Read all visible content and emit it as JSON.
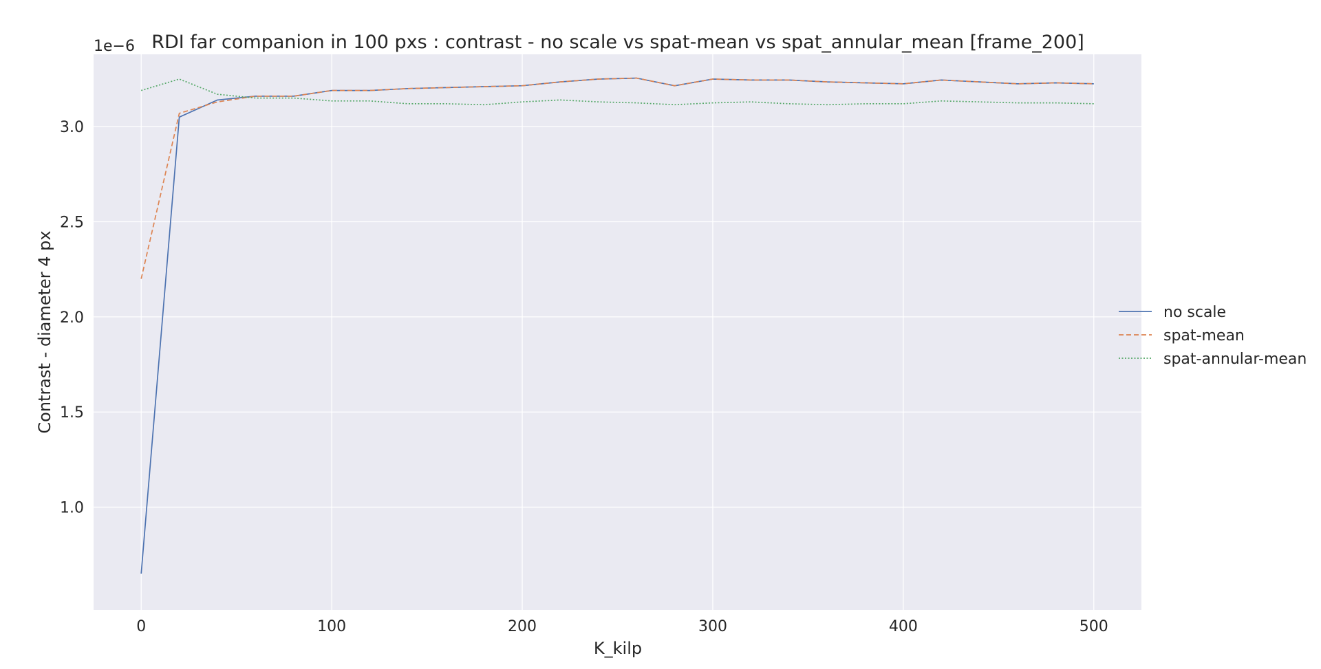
{
  "chart_data": {
    "type": "line",
    "title": "RDI far companion in 100 pxs : contrast - no scale vs spat-mean vs spat_annular_mean [frame_200]",
    "xlabel": "K_kilp",
    "ylabel": "Contrast - diameter 4 px",
    "y_offset_label": "1e−6",
    "xlim": [
      -25,
      525
    ],
    "ylim": [
      0.46,
      3.38
    ],
    "x_ticks": [
      0,
      100,
      200,
      300,
      400,
      500
    ],
    "x_tick_labels": [
      "0",
      "100",
      "200",
      "300",
      "400",
      "500"
    ],
    "y_ticks": [
      1.0,
      1.5,
      2.0,
      2.5,
      3.0
    ],
    "y_tick_labels": [
      "1.0",
      "1.5",
      "2.0",
      "2.5",
      "3.0"
    ],
    "grid": true,
    "legend_position": "right, outside plot",
    "x": [
      0,
      20,
      40,
      60,
      80,
      100,
      120,
      140,
      160,
      180,
      200,
      220,
      240,
      260,
      280,
      300,
      320,
      340,
      360,
      380,
      400,
      420,
      440,
      460,
      480,
      500
    ],
    "series": [
      {
        "name": "no scale",
        "color": "#4c72b0",
        "dash": "solid",
        "values": [
          0.65,
          3.05,
          3.14,
          3.16,
          3.16,
          3.19,
          3.19,
          3.2,
          3.205,
          3.21,
          3.215,
          3.235,
          3.25,
          3.255,
          3.215,
          3.25,
          3.245,
          3.245,
          3.235,
          3.23,
          3.225,
          3.245,
          3.235,
          3.225,
          3.23,
          3.225
        ]
      },
      {
        "name": "spat-mean",
        "color": "#dd8452",
        "dash": "dashed",
        "values": [
          2.2,
          3.07,
          3.13,
          3.16,
          3.16,
          3.19,
          3.19,
          3.2,
          3.205,
          3.21,
          3.215,
          3.235,
          3.25,
          3.255,
          3.215,
          3.25,
          3.245,
          3.245,
          3.235,
          3.23,
          3.225,
          3.245,
          3.235,
          3.225,
          3.23,
          3.225
        ]
      },
      {
        "name": "spat-annular-mean",
        "color": "#55a868",
        "dash": "dotted",
        "values": [
          3.19,
          3.25,
          3.17,
          3.15,
          3.15,
          3.135,
          3.135,
          3.12,
          3.12,
          3.115,
          3.13,
          3.14,
          3.13,
          3.125,
          3.115,
          3.125,
          3.13,
          3.12,
          3.115,
          3.12,
          3.12,
          3.135,
          3.13,
          3.125,
          3.125,
          3.12
        ]
      }
    ],
    "colors": {
      "plot_background": "#eaeaf2",
      "grid": "#ffffff",
      "text": "#262626"
    }
  }
}
